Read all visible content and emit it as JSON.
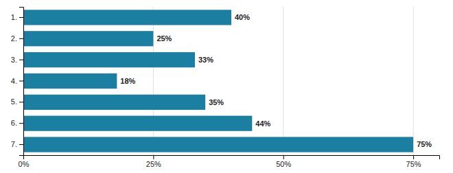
{
  "chart_data": {
    "type": "bar",
    "orientation": "horizontal",
    "categories": [
      "1.",
      "2.",
      "3.",
      "4.",
      "5.",
      "6.",
      "7."
    ],
    "values": [
      40,
      25,
      33,
      18,
      35,
      44,
      75
    ],
    "value_labels": [
      "40%",
      "25%",
      "33%",
      "18%",
      "35%",
      "44%",
      "75%"
    ],
    "data_labels": true,
    "color": "#1a7fa0",
    "xlim": [
      0,
      80
    ],
    "xticks": [
      {
        "value": 0,
        "label": "0%"
      },
      {
        "value": 25,
        "label": "25%"
      },
      {
        "value": 50,
        "label": "50%"
      },
      {
        "value": 75,
        "label": "75%"
      }
    ],
    "grid": true
  }
}
